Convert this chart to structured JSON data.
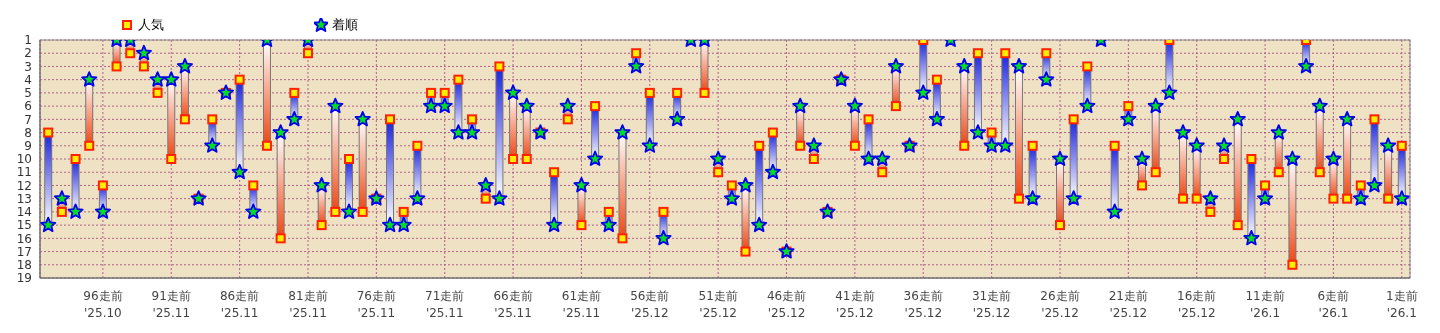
{
  "chart_data": {
    "type": "scatter",
    "categories": [
      null,
      null,
      null,
      null,
      "96走前\n'25.10",
      null,
      null,
      null,
      null,
      "91走前\n'25.11",
      null,
      null,
      null,
      null,
      "86走前\n'25.11",
      null,
      null,
      null,
      null,
      "81走前\n'25.11",
      null,
      null,
      null,
      null,
      "76走前\n'25.11",
      null,
      null,
      null,
      null,
      "71走前\n'25.11",
      null,
      null,
      null,
      null,
      "66走前\n'25.11",
      null,
      null,
      null,
      null,
      "61走前\n'25.11",
      null,
      null,
      null,
      null,
      "56走前\n'25.12",
      null,
      null,
      null,
      null,
      "51走前\n'25.12",
      null,
      null,
      null,
      null,
      "46走前\n'25.12",
      null,
      null,
      null,
      null,
      "41走前\n'25.12",
      null,
      null,
      null,
      null,
      "36走前\n'25.12",
      null,
      null,
      null,
      null,
      "31走前\n'25.12",
      null,
      null,
      null,
      null,
      "26走前\n'25.12",
      null,
      null,
      null,
      null,
      "21走前\n'25.12",
      null,
      null,
      null,
      null,
      "16走前\n'25.12",
      null,
      null,
      null,
      null,
      "11走前\n'26.1",
      null,
      null,
      null,
      null,
      "6走前\n'26.1",
      null,
      null,
      null,
      null,
      "1走前\n'26.1"
    ],
    "series": [
      {
        "name": "人気",
        "color": "#ffee00",
        "marker": "square",
        "values": [
          8,
          14,
          10,
          9,
          12,
          3,
          2,
          3,
          5,
          10,
          7,
          13,
          7,
          5,
          4,
          12,
          9,
          16,
          5,
          2,
          15,
          14,
          10,
          14,
          13,
          7,
          14,
          9,
          5,
          5,
          4,
          7,
          13,
          3,
          10,
          10,
          8,
          11,
          7,
          15,
          6,
          14,
          16,
          2,
          5,
          14,
          5,
          null,
          5,
          11,
          12,
          17,
          9,
          8,
          17,
          9,
          10,
          14,
          4,
          9,
          7,
          11,
          6,
          9,
          1,
          4,
          null,
          9,
          2,
          8,
          2,
          13,
          9,
          2,
          15,
          7,
          3,
          null,
          9,
          6,
          12,
          11,
          1,
          13,
          13,
          14,
          10,
          15,
          10,
          12,
          11,
          18,
          1,
          11,
          13,
          13,
          12,
          7,
          13,
          9
        ]
      },
      {
        "name": "着順",
        "color": "#00dd22",
        "marker": "star",
        "values": [
          15,
          13,
          14,
          4,
          14,
          1,
          1,
          2,
          4,
          4,
          3,
          13,
          9,
          5,
          11,
          14,
          1,
          8,
          7,
          1,
          12,
          6,
          14,
          7,
          13,
          15,
          15,
          13,
          6,
          6,
          8,
          8,
          12,
          13,
          5,
          6,
          8,
          15,
          6,
          12,
          10,
          15,
          8,
          3,
          9,
          16,
          7,
          1,
          1,
          10,
          13,
          12,
          15,
          11,
          17,
          6,
          9,
          14,
          4,
          6,
          10,
          10,
          3,
          9,
          5,
          7,
          1,
          3,
          8,
          9,
          9,
          3,
          13,
          4,
          10,
          13,
          6,
          1,
          14,
          7,
          10,
          6,
          5,
          8,
          9,
          13,
          9,
          7,
          16,
          13,
          8,
          10,
          3,
          6,
          10,
          7,
          13,
          12,
          9,
          13
        ]
      }
    ],
    "ylim": [
      19,
      1
    ],
    "yticks": [
      1,
      2,
      3,
      4,
      5,
      6,
      7,
      8,
      9,
      10,
      11,
      12,
      13,
      14,
      15,
      16,
      17,
      18,
      19
    ],
    "grid": true,
    "legend": "top left"
  }
}
